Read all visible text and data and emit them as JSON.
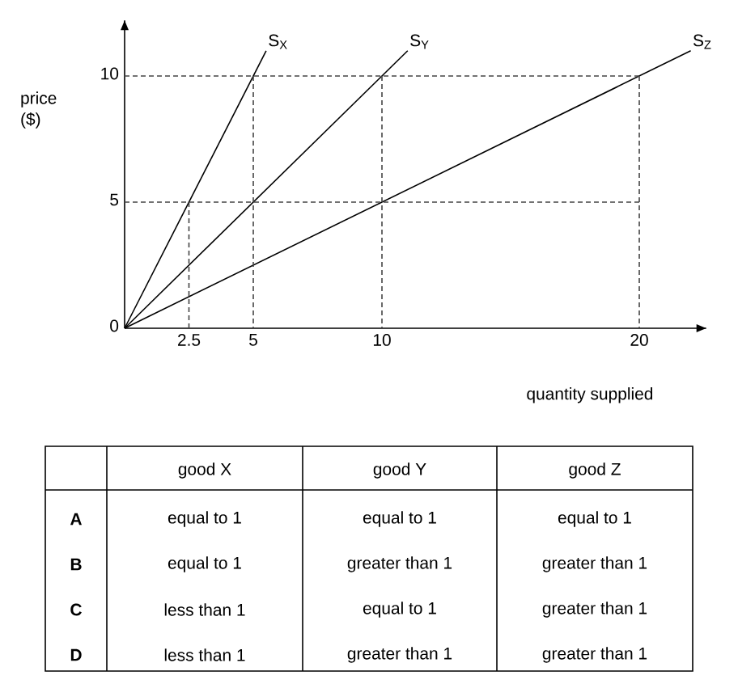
{
  "chart_data": {
    "type": "line",
    "xlabel": "quantity supplied",
    "ylabel": "price ($)",
    "xlim": [
      0,
      22.6
    ],
    "ylim": [
      0,
      12.2
    ],
    "xticks": [
      2.5,
      5,
      10,
      20
    ],
    "yticks": [
      0,
      5,
      10
    ],
    "series": [
      {
        "name": "S$_{X}$",
        "color": "#000000",
        "x": [
          0,
          5.5
        ],
        "values": [
          0,
          11
        ],
        "line_style": "solid"
      },
      {
        "name": "S$_{Y}$",
        "color": "#000000",
        "x": [
          0,
          11
        ],
        "values": [
          0,
          11
        ],
        "line_style": "solid"
      },
      {
        "name": "S$_{Z}$",
        "color": "#000000",
        "x": [
          0,
          22
        ],
        "values": [
          0,
          11
        ],
        "line_style": "solid"
      },
      {
        "color": "#444444",
        "x": [
          0,
          20
        ],
        "values": [
          10,
          10
        ],
        "line_style": "dashed"
      },
      {
        "color": "#444444",
        "x": [
          20,
          20
        ],
        "values": [
          10,
          0
        ],
        "line_style": "dashed"
      },
      {
        "color": "#444444",
        "x": [
          0,
          20
        ],
        "values": [
          5,
          5
        ],
        "line_style": "dashed"
      },
      {
        "color": "#444444",
        "x": [
          2.5,
          2.5
        ],
        "values": [
          5,
          0
        ],
        "line_style": "dashed"
      },
      {
        "color": "#444444",
        "x": [
          5,
          5
        ],
        "values": [
          10,
          0
        ],
        "line_style": "dashed"
      },
      {
        "color": "#444444",
        "x": [
          10,
          10
        ],
        "values": [
          10,
          0
        ],
        "line_style": "dashed"
      }
    ],
    "annotations": [
      "good X",
      "good Y",
      "good Z",
      "A",
      "equal to 1",
      "equal to 1",
      "equal to 1",
      "B",
      "equal to 1",
      "greater than 1",
      "greater than 1",
      "C",
      "less than 1",
      "equal to 1",
      "greater than 1",
      "D",
      "less than 1",
      "greater than 1",
      "greater than 1"
    ]
  }
}
